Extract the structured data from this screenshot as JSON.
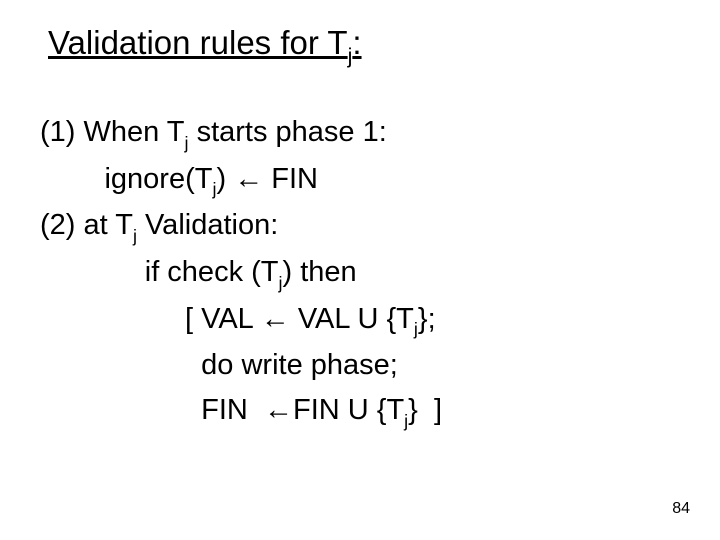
{
  "colors": {
    "background": "#ffffff",
    "text": "#000000"
  },
  "title": {
    "pre": "Validation rules for T",
    "sub": "j",
    "post": ":",
    "fontsize": 33,
    "underline": true
  },
  "body": {
    "fontsize": 29,
    "lines": [
      {
        "indent": "",
        "segments": [
          {
            "t": "(1) When T"
          },
          {
            "t": "j",
            "sub": true
          },
          {
            "t": " starts phase 1:"
          }
        ]
      },
      {
        "indent": "        ",
        "segments": [
          {
            "t": "ignore(T"
          },
          {
            "t": "j",
            "sub": true
          },
          {
            "t": ") "
          },
          {
            "t": "←",
            "arrow": true
          },
          {
            "t": " FIN"
          }
        ]
      },
      {
        "indent": "",
        "segments": [
          {
            "t": "(2) at T"
          },
          {
            "t": "j",
            "sub": true
          },
          {
            "t": " Validation:"
          }
        ]
      },
      {
        "indent": "             ",
        "segments": [
          {
            "t": "if check (T"
          },
          {
            "t": "j",
            "sub": true
          },
          {
            "t": ") then"
          }
        ]
      },
      {
        "indent": "                  ",
        "segments": [
          {
            "t": "[ VAL "
          },
          {
            "t": "←",
            "arrow": true
          },
          {
            "t": " VAL U {T"
          },
          {
            "t": "j",
            "sub": true
          },
          {
            "t": "};"
          }
        ]
      },
      {
        "indent": "                    ",
        "segments": [
          {
            "t": "do write phase;"
          }
        ]
      },
      {
        "indent": "                    ",
        "segments": [
          {
            "t": "FIN  "
          },
          {
            "t": "←",
            "arrow": true
          },
          {
            "t": "FIN U {T"
          },
          {
            "t": "j",
            "sub": true
          },
          {
            "t": "}  ]"
          }
        ]
      }
    ]
  },
  "pagenum": "84"
}
